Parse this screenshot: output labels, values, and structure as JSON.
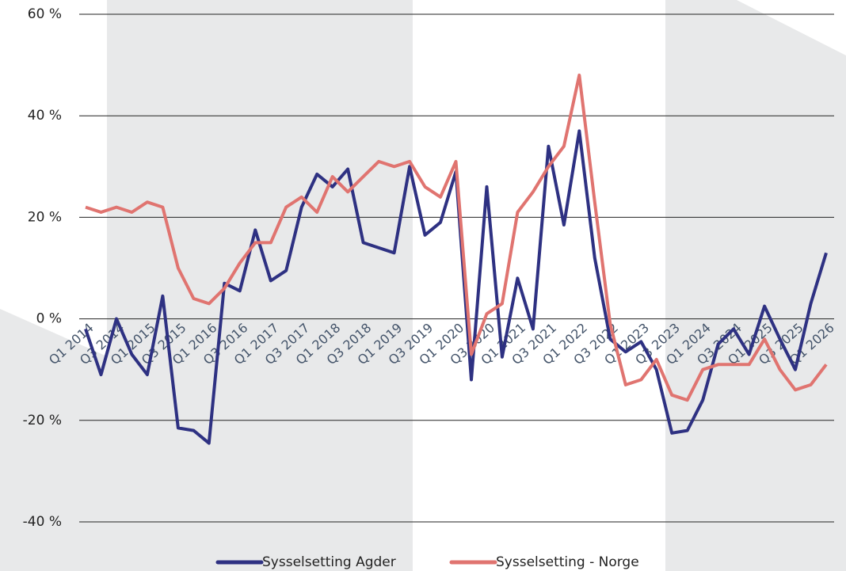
{
  "chart_data": {
    "type": "line",
    "categories": [
      "Q1 2014",
      null,
      "Q3 2014",
      null,
      "Q1 2015",
      null,
      "Q3 2015",
      null,
      "Q1 2016",
      null,
      "Q3 2016",
      null,
      "Q1 2017",
      null,
      "Q3 2017",
      null,
      "Q1 2018",
      null,
      "Q3 2018",
      null,
      "Q1 2019",
      null,
      "Q3 2019",
      null,
      "Q1 2020",
      null,
      "Q3 2020",
      null,
      "Q1 2021",
      null,
      "Q3 2021",
      null,
      "Q1 2022",
      null,
      "Q3 2022",
      null,
      "Q1 2023",
      null,
      "Q3 2023",
      null,
      "Q1 2024",
      null,
      "Q3 2024",
      null,
      "Q1 2025",
      null,
      "Q3 2025",
      null,
      "Q1 2026"
    ],
    "series": [
      {
        "name": "Sysselsetting Agder",
        "color": "#2e3182",
        "values": [
          -2,
          -11,
          0,
          -7,
          -11,
          4.5,
          -21.5,
          -22,
          -24.5,
          7,
          5.5,
          17.5,
          7.5,
          9.5,
          22,
          28.5,
          26,
          29.5,
          15,
          14,
          13,
          30,
          16.5,
          19,
          29,
          -12,
          26,
          -7.5,
          8,
          -2,
          34,
          18.5,
          37,
          12,
          -4,
          -6.5,
          -4.5,
          -10,
          -22.5,
          -22,
          -16,
          -5,
          -2,
          -7,
          2.5,
          -4,
          -10,
          3,
          13
        ]
      },
      {
        "name": "Sysselsetting - Norge",
        "color": "#e07470",
        "values": [
          22,
          21,
          22,
          21,
          23,
          22,
          10,
          4,
          3,
          6,
          11,
          15,
          15,
          22,
          24,
          21,
          28,
          25,
          28,
          31,
          30,
          31,
          26,
          24,
          31,
          -7,
          1,
          3,
          21,
          25,
          30,
          34,
          48,
          23,
          -1,
          -13,
          -12,
          -8,
          -15,
          -16,
          -10,
          -9,
          -9,
          -9,
          -4,
          -10,
          -14,
          -13,
          -9
        ]
      }
    ],
    "ylim": [
      -40,
      60
    ],
    "yticks": [
      {
        "value": -40,
        "label": "-40 %"
      },
      {
        "value": -20,
        "label": "-20 %"
      },
      {
        "value": 0,
        "label": "0 %"
      },
      {
        "value": 20,
        "label": "20 %"
      },
      {
        "value": 40,
        "label": "40 %"
      },
      {
        "value": 60,
        "label": "60 %"
      }
    ],
    "grid": true
  }
}
